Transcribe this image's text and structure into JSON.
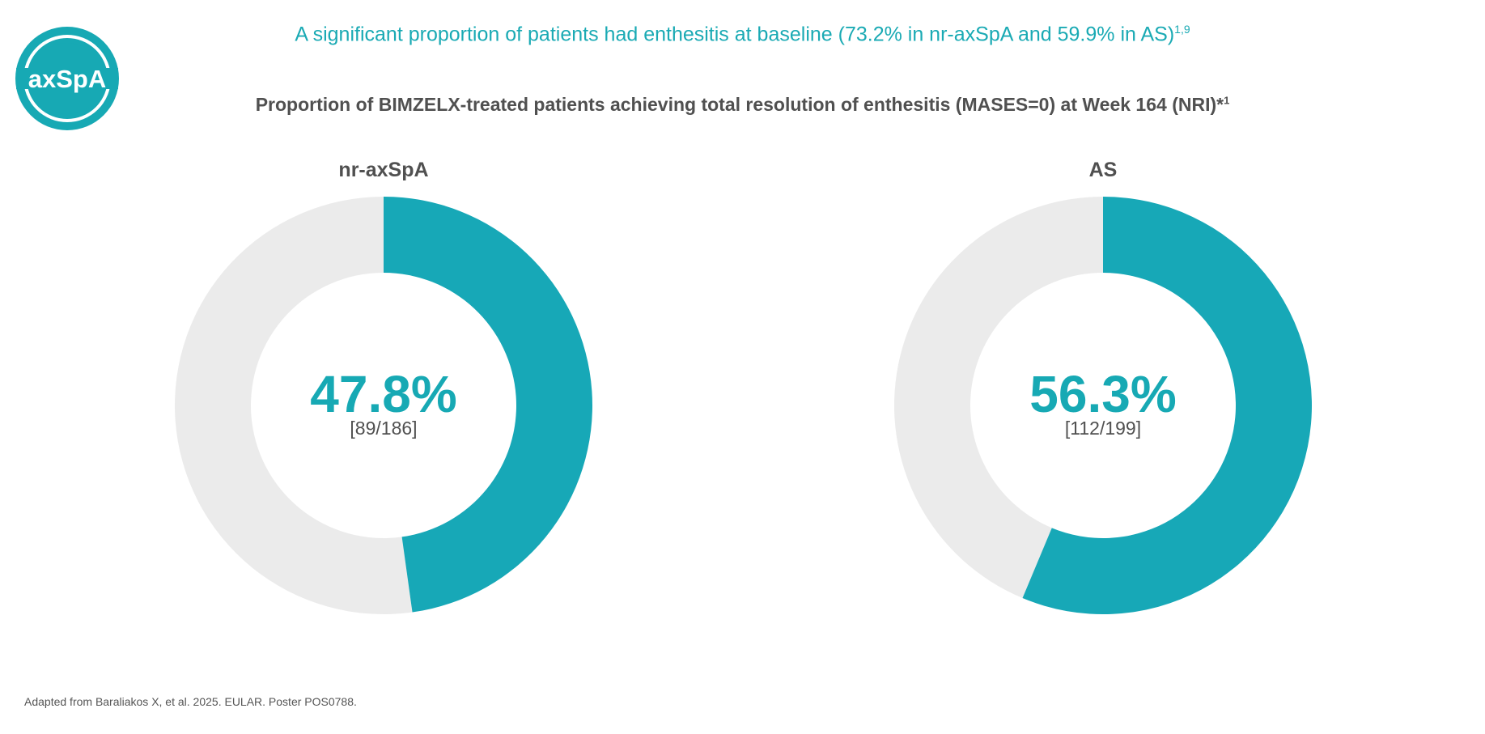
{
  "logo": {
    "text": "axSpA",
    "color": "#17a9b4"
  },
  "title": {
    "text": "A significant proportion of patients had enthesitis at baseline (73.2% in nr-axSpA and 59.9% in AS)",
    "sup": "1,9"
  },
  "chart_data": {
    "type": "pie",
    "title": "Proportion of BIMZELX-treated patients achieving total resolution of enthesitis (MASES=0) at Week 164 (NRI)*",
    "title_sup": "1",
    "colors": {
      "achieved": "#17a8b7",
      "remainder": "#ebebeb"
    },
    "charts": [
      {
        "name": "nr-axSpA",
        "value": 47.8,
        "label": "47.8%",
        "fraction": "[89/186]",
        "n": 89,
        "total": 186
      },
      {
        "name": "AS",
        "value": 56.3,
        "label": "56.3%",
        "fraction": "[112/199]",
        "n": 112,
        "total": 199
      }
    ]
  },
  "footnote": "Adapted from Baraliakos X, et al. 2025. EULAR. Poster POS0788."
}
